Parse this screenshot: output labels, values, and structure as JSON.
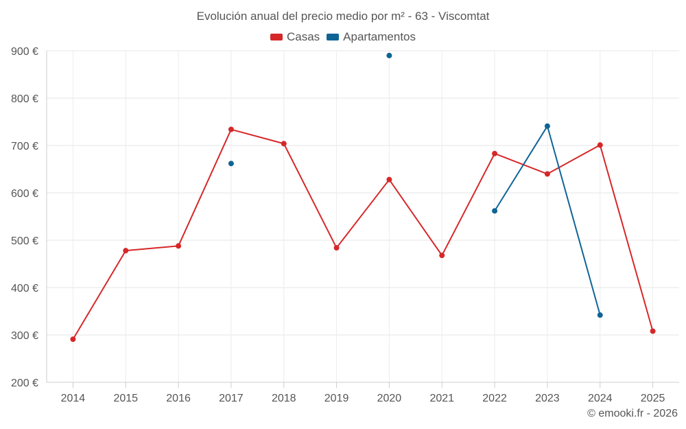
{
  "chart_data": {
    "type": "line",
    "title": "Evolución anual del precio medio por m² - 63 - Viscomtat",
    "categories": [
      "2014",
      "2015",
      "2016",
      "2017",
      "2018",
      "2019",
      "2020",
      "2021",
      "2022",
      "2023",
      "2024",
      "2025"
    ],
    "ylim": [
      200,
      900
    ],
    "yticks": [
      200,
      300,
      400,
      500,
      600,
      700,
      800,
      900
    ],
    "ytick_suffix": " €",
    "ytick_labels": [
      "200 €",
      "300 €",
      "400 €",
      "500 €",
      "600 €",
      "700 €",
      "800 €",
      "900 €"
    ],
    "grid": true,
    "legend_position": "top-center",
    "series": [
      {
        "name": "Casas",
        "color": "#d62728",
        "values": [
          291,
          478,
          488,
          734,
          704,
          484,
          628,
          468,
          683,
          640,
          701,
          308
        ]
      },
      {
        "name": "Apartamentos",
        "color": "#0f6496",
        "values": [
          null,
          null,
          null,
          662,
          null,
          null,
          890,
          null,
          562,
          741,
          342,
          null
        ]
      }
    ]
  },
  "credits": "© emooki.fr - 2026"
}
